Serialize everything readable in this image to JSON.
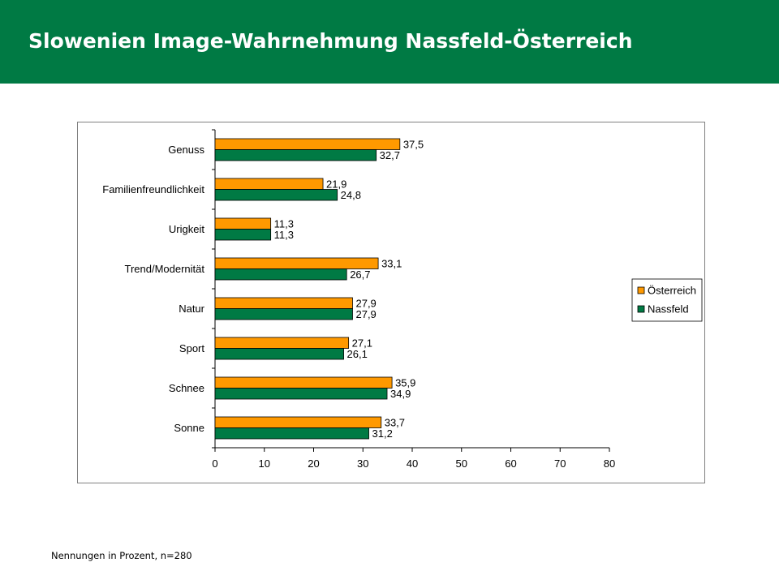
{
  "page": {
    "title": "Slowenien Image-Wahrnehmung Nassfeld-Österreich",
    "footnote": "Nennungen in Prozent, n=280",
    "colors": {
      "header_bg": "#007a44",
      "title_text": "#ffffff"
    }
  },
  "chart_data": {
    "type": "bar",
    "orientation": "horizontal",
    "title": "",
    "xlabel": "",
    "ylabel": "",
    "categories": [
      "Genuss",
      "Familienfreundlichkeit",
      "Urigkeit",
      "Trend/Modernität",
      "Natur",
      "Sport",
      "Schnee",
      "Sonne"
    ],
    "series": [
      {
        "name": "Österreich",
        "color": "#ff9900",
        "values": [
          37.5,
          21.9,
          11.3,
          33.1,
          27.9,
          27.1,
          35.9,
          33.7
        ],
        "labels": [
          "37,5",
          "21,9",
          "11,3",
          "33,1",
          "27,9",
          "27,1",
          "35,9",
          "33,7"
        ]
      },
      {
        "name": "Nassfeld",
        "color": "#007a44",
        "values": [
          32.7,
          24.8,
          11.3,
          26.7,
          27.9,
          26.1,
          34.9,
          31.2
        ],
        "labels": [
          "32,7",
          "24,8",
          "11,3",
          "26,7",
          "27,9",
          "26,1",
          "34,9",
          "31,2"
        ]
      }
    ],
    "xlim": [
      0,
      80
    ],
    "xticks": [
      "0",
      "10",
      "20",
      "30",
      "40",
      "50",
      "60",
      "70",
      "80"
    ],
    "grid": false,
    "legend_position": "right"
  }
}
